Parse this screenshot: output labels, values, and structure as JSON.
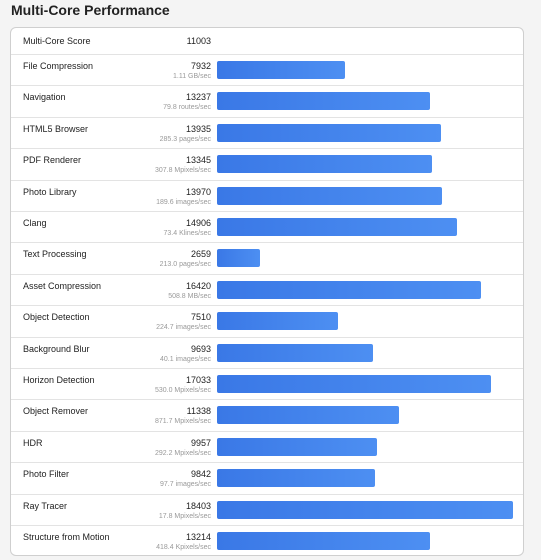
{
  "title": "Multi-Core Performance",
  "summary": {
    "label": "Multi-Core Score",
    "score": 11003
  },
  "rows": [
    {
      "name": "File Compression",
      "score": 7932,
      "rate": "1.11 GB/sec"
    },
    {
      "name": "Navigation",
      "score": 13237,
      "rate": "79.8 routes/sec"
    },
    {
      "name": "HTML5 Browser",
      "score": 13935,
      "rate": "285.3 pages/sec"
    },
    {
      "name": "PDF Renderer",
      "score": 13345,
      "rate": "307.8 Mpixels/sec"
    },
    {
      "name": "Photo Library",
      "score": 13970,
      "rate": "189.6 images/sec"
    },
    {
      "name": "Clang",
      "score": 14906,
      "rate": "73.4 Klines/sec"
    },
    {
      "name": "Text Processing",
      "score": 2659,
      "rate": "213.0 pages/sec"
    },
    {
      "name": "Asset Compression",
      "score": 16420,
      "rate": "508.8 MB/sec"
    },
    {
      "name": "Object Detection",
      "score": 7510,
      "rate": "224.7 images/sec"
    },
    {
      "name": "Background Blur",
      "score": 9693,
      "rate": "40.1 images/sec"
    },
    {
      "name": "Horizon Detection",
      "score": 17033,
      "rate": "530.0 Mpixels/sec"
    },
    {
      "name": "Object Remover",
      "score": 11338,
      "rate": "871.7 Mpixels/sec"
    },
    {
      "name": "HDR",
      "score": 9957,
      "rate": "292.2 Mpixels/sec"
    },
    {
      "name": "Photo Filter",
      "score": 9842,
      "rate": "97.7 images/sec"
    },
    {
      "name": "Ray Tracer",
      "score": 18403,
      "rate": "17.8 Mpixels/sec"
    },
    {
      "name": "Structure from Motion",
      "score": 13214,
      "rate": "418.4 Kpixels/sec"
    }
  ]
}
